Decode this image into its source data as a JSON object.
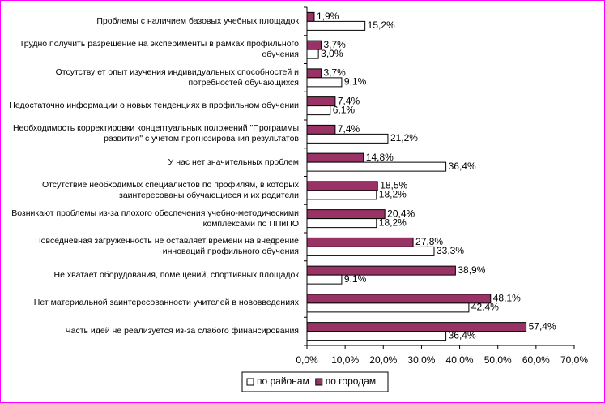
{
  "chart_data": {
    "type": "bar",
    "orientation": "horizontal",
    "categories": [
      "Проблемы с наличием базовых учебных площадок",
      "Трудно получить разрешение на эксперименты в рамках профильного обучения",
      "Отсутству ет опыт изучения индивидуальных способностей и потребностей обучающихся",
      "Недостаточно информации о новых тенденциях в профильном обучении",
      "Необходимость корректировки концептуальных положений \"Программы развития\" с учетом прогнозирования результатов",
      "У нас нет значительных проблем",
      "Отсутствие необходимых специалистов по профилям, в которых заинтересованы обучающиеся и их родители",
      "Возникают проблемы из-за плохого обеспечения учебно-методическими комплексами по ППиПО",
      "Повседневная загруженность не оставляет времени на внедрение инноваций профильного обучения",
      "Не хватает оборудования, помещений, спортивных площадок",
      "Нет материальной заинтересованности учителей в нововведениях",
      "Часть идей не реализуется из-за слабого финансирования"
    ],
    "series": [
      {
        "name": "по районам",
        "color": "#ffffff",
        "values": [
          15.2,
          3.0,
          9.1,
          6.1,
          21.2,
          36.4,
          18.2,
          18.2,
          33.3,
          9.1,
          42.4,
          36.4
        ],
        "value_labels": [
          "15,2%",
          "3,0%",
          "9,1%",
          "6,1%",
          "21,2%",
          "36,4%",
          "18,2%",
          "18,2%",
          "33,3%",
          "9,1%",
          "42,4%",
          "36,4%"
        ]
      },
      {
        "name": "по городам",
        "color": "#993366",
        "values": [
          1.9,
          3.7,
          3.7,
          7.4,
          7.4,
          14.8,
          18.5,
          20.4,
          27.8,
          38.9,
          48.1,
          57.4
        ],
        "value_labels": [
          "1,9%",
          "3,7%",
          "3,7%",
          "7,4%",
          "7,4%",
          "14,8%",
          "18,5%",
          "20,4%",
          "27,8%",
          "38,9%",
          "48,1%",
          "57,4%"
        ]
      }
    ],
    "xlim": [
      0,
      70
    ],
    "xticks": [
      {
        "value": 0,
        "label": "0,0%"
      },
      {
        "value": 10,
        "label": "10,0%"
      },
      {
        "value": 20,
        "label": "20,0%"
      },
      {
        "value": 30,
        "label": "30,0%"
      },
      {
        "value": 40,
        "label": "40,0%"
      },
      {
        "value": 50,
        "label": "50,0%"
      },
      {
        "value": 60,
        "label": "60,0%"
      },
      {
        "value": 70,
        "label": "70,0%"
      }
    ],
    "grid": false,
    "legend": "bottom"
  }
}
